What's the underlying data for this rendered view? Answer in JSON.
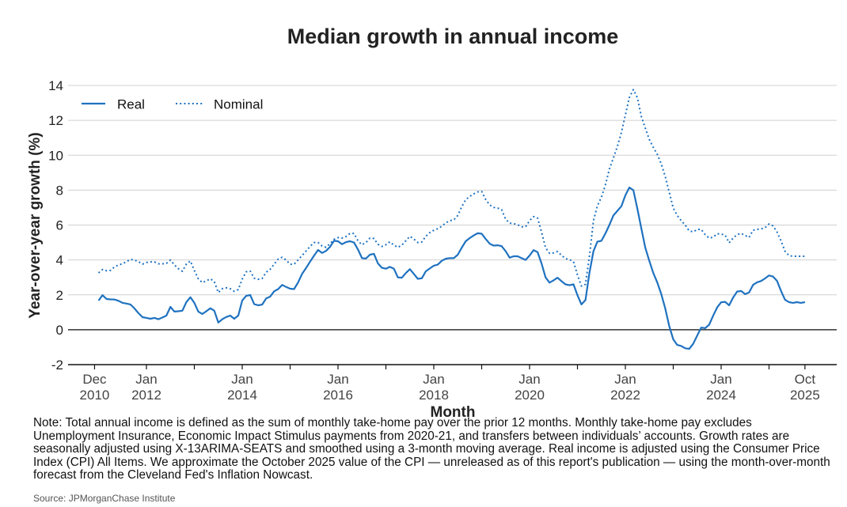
{
  "chart_data": {
    "type": "line",
    "title": "Median growth in annual income",
    "xlabel": "Month",
    "ylabel": "Year-over-year growth (%)",
    "ylim": [
      -2,
      14
    ],
    "yticks": [
      -2,
      0,
      2,
      4,
      6,
      8,
      10,
      12,
      14
    ],
    "xlim": [
      "2010-12",
      "2025-10"
    ],
    "xticks": [
      {
        "date": "2010-12",
        "label": [
          "Dec",
          "2010"
        ]
      },
      {
        "date": "2012-01",
        "label": [
          "Jan",
          "2012"
        ]
      },
      {
        "date": "2013-01",
        "label": [
          "",
          ""
        ]
      },
      {
        "date": "2014-01",
        "label": [
          "Jan",
          "2014"
        ]
      },
      {
        "date": "2015-01",
        "label": [
          "",
          ""
        ]
      },
      {
        "date": "2016-01",
        "label": [
          "Jan",
          "2016"
        ]
      },
      {
        "date": "2017-01",
        "label": [
          "",
          ""
        ]
      },
      {
        "date": "2018-01",
        "label": [
          "Jan",
          "2018"
        ]
      },
      {
        "date": "2019-01",
        "label": [
          "",
          ""
        ]
      },
      {
        "date": "2020-01",
        "label": [
          "Jan",
          "2020"
        ]
      },
      {
        "date": "2021-01",
        "label": [
          "",
          ""
        ]
      },
      {
        "date": "2022-01",
        "label": [
          "Jan",
          "2022"
        ]
      },
      {
        "date": "2023-01",
        "label": [
          "",
          ""
        ]
      },
      {
        "date": "2024-01",
        "label": [
          "Jan",
          "2024"
        ]
      },
      {
        "date": "2025-01",
        "label": [
          "",
          ""
        ]
      },
      {
        "date": "2025-10",
        "label": [
          "Oct",
          "2025"
        ]
      }
    ],
    "grid": "horizontal",
    "legend": "top-left",
    "color": "#1f72c0",
    "start": "2011-01",
    "frequency": "monthly",
    "series": [
      {
        "name": "Real",
        "style": "solid",
        "values": [
          1.67,
          1.98,
          1.76,
          1.74,
          1.73,
          1.66,
          1.54,
          1.5,
          1.45,
          1.22,
          0.95,
          0.72,
          0.68,
          0.63,
          0.68,
          0.6,
          0.7,
          0.81,
          1.31,
          1.04,
          1.06,
          1.09,
          1.58,
          1.86,
          1.54,
          1.04,
          0.9,
          1.06,
          1.23,
          1.09,
          0.41,
          0.6,
          0.73,
          0.81,
          0.63,
          0.81,
          1.67,
          1.94,
          1.99,
          1.47,
          1.4,
          1.44,
          1.8,
          1.9,
          2.2,
          2.33,
          2.57,
          2.45,
          2.35,
          2.33,
          2.71,
          3.2,
          3.54,
          3.9,
          4.25,
          4.57,
          4.4,
          4.52,
          4.75,
          5.1,
          5.07,
          4.9,
          5.02,
          5.07,
          5.0,
          4.6,
          4.1,
          4.08,
          4.3,
          4.35,
          3.8,
          3.55,
          3.5,
          3.6,
          3.5,
          3.0,
          2.98,
          3.25,
          3.47,
          3.2,
          2.92,
          2.95,
          3.35,
          3.51,
          3.67,
          3.73,
          3.95,
          4.07,
          4.1,
          4.1,
          4.3,
          4.7,
          5.07,
          5.25,
          5.4,
          5.53,
          5.5,
          5.2,
          4.93,
          4.82,
          4.84,
          4.79,
          4.5,
          4.13,
          4.21,
          4.21,
          4.1,
          4.0,
          4.25,
          4.56,
          4.45,
          3.8,
          3.0,
          2.7,
          2.83,
          2.98,
          2.78,
          2.6,
          2.55,
          2.6,
          1.98,
          1.45,
          1.7,
          3.25,
          4.5,
          5.05,
          5.1,
          5.52,
          6.0,
          6.55,
          6.81,
          7.08,
          7.7,
          8.15,
          8.0,
          6.95,
          5.8,
          4.7,
          3.94,
          3.25,
          2.71,
          2.04,
          1.22,
          0.2,
          -0.55,
          -0.87,
          -0.93,
          -1.06,
          -1.1,
          -0.81,
          -0.33,
          0.12,
          0.09,
          0.29,
          0.8,
          1.28,
          1.57,
          1.6,
          1.4,
          1.84,
          2.19,
          2.22,
          2.04,
          2.14,
          2.57,
          2.72,
          2.79,
          2.94,
          3.11,
          3.05,
          2.8,
          2.23,
          1.72,
          1.58,
          1.54,
          1.58,
          1.54,
          1.58
        ]
      },
      {
        "name": "Nominal",
        "style": "dotted",
        "values": [
          3.26,
          3.45,
          3.38,
          3.4,
          3.6,
          3.71,
          3.78,
          3.9,
          4.03,
          3.99,
          3.9,
          3.76,
          3.85,
          3.89,
          3.89,
          3.78,
          3.78,
          3.8,
          3.99,
          3.72,
          3.5,
          3.35,
          3.76,
          3.94,
          3.4,
          2.92,
          2.7,
          2.8,
          2.92,
          2.76,
          2.13,
          2.35,
          2.4,
          2.35,
          2.2,
          2.3,
          2.9,
          3.32,
          3.36,
          2.95,
          2.89,
          2.93,
          3.3,
          3.46,
          3.75,
          4.05,
          4.15,
          3.99,
          3.75,
          3.75,
          4.0,
          4.25,
          4.52,
          4.77,
          5.0,
          5.0,
          4.8,
          4.72,
          4.93,
          5.18,
          5.28,
          5.25,
          5.34,
          5.52,
          5.52,
          5.1,
          4.87,
          5.0,
          5.25,
          5.23,
          4.9,
          4.77,
          4.87,
          5.04,
          4.85,
          4.72,
          4.85,
          5.1,
          5.35,
          5.2,
          5.0,
          5.03,
          5.35,
          5.57,
          5.7,
          5.79,
          5.93,
          6.12,
          6.25,
          6.29,
          6.55,
          7.05,
          7.45,
          7.64,
          7.78,
          7.9,
          7.92,
          7.47,
          7.15,
          7.01,
          6.97,
          6.88,
          6.33,
          6.11,
          6.08,
          6.02,
          5.9,
          5.9,
          6.25,
          6.48,
          6.4,
          5.6,
          4.7,
          4.38,
          4.4,
          4.48,
          4.27,
          4.08,
          4.02,
          3.9,
          3.15,
          2.5,
          2.6,
          4.2,
          6.25,
          7.1,
          7.6,
          8.3,
          9.2,
          9.85,
          10.5,
          11.3,
          12.3,
          13.3,
          13.76,
          13.3,
          12.22,
          11.55,
          10.9,
          10.45,
          10.05,
          9.5,
          8.78,
          7.87,
          6.97,
          6.55,
          6.25,
          6.0,
          5.66,
          5.61,
          5.75,
          5.75,
          5.45,
          5.25,
          5.3,
          5.5,
          5.48,
          5.43,
          4.98,
          5.25,
          5.45,
          5.52,
          5.4,
          5.29,
          5.7,
          5.75,
          5.78,
          5.85,
          6.06,
          5.95,
          5.6,
          5.1,
          4.5,
          4.25,
          4.21,
          4.21,
          4.21,
          4.21
        ]
      }
    ]
  },
  "note": "Note: Total annual income is defined as the sum of monthly take-home pay over the prior 12 months. Monthly take-home pay excludes Unemployment Insurance, Economic Impact Stimulus payments from 2020-21, and transfers between individuals’ accounts. Growth rates are seasonally adjusted using X-13ARIMA-SEATS and smoothed using a 3-month moving average. Real income is adjusted using the Consumer Price Index (CPI) All Items. We approximate the October 2025 value of the CPI — unreleased as of this report's publication — using the month-over-month forecast from the Cleveland Fed's Inflation Nowcast.",
  "source": "Source: JPMorganChase Institute"
}
